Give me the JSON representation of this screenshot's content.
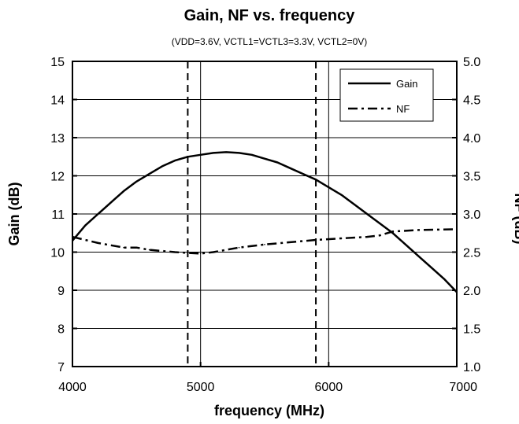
{
  "chart_data": {
    "type": "line",
    "title": "Gain, NF vs. frequency",
    "subtitle": "(VDD=3.6V, VCTL1=VCTL3=3.3V, VCTL2=0V)",
    "xlabel": "frequency (MHz)",
    "ylabel_left": "Gain (dB)",
    "ylabel_right": "NF (dB)",
    "xlim": [
      4000,
      7000
    ],
    "ylim_left": [
      7,
      15
    ],
    "ylim_right": [
      1.0,
      5.0
    ],
    "x_ticks": [
      "4000",
      "5000",
      "6000",
      "7000"
    ],
    "y_ticks_left": [
      "7",
      "8",
      "9",
      "10",
      "11",
      "12",
      "13",
      "14",
      "15"
    ],
    "y_ticks_right": [
      "1.0",
      "1.5",
      "2.0",
      "2.5",
      "3.0",
      "3.5",
      "4.0",
      "4.5",
      "5.0"
    ],
    "grid": true,
    "legend_position": "top-right",
    "vertical_markers": [
      4900,
      5900
    ],
    "series": [
      {
        "name": "Gain",
        "axis": "left",
        "style": "solid",
        "x": [
          4000,
          4100,
          4200,
          4300,
          4400,
          4500,
          4600,
          4700,
          4800,
          4900,
          5000,
          5100,
          5200,
          5300,
          5400,
          5500,
          5600,
          5700,
          5800,
          5900,
          6000,
          6100,
          6200,
          6300,
          6400,
          6500,
          6600,
          6700,
          6800,
          6900,
          7000
        ],
        "values": [
          10.3,
          10.7,
          11.0,
          11.3,
          11.6,
          11.85,
          12.05,
          12.25,
          12.4,
          12.5,
          12.55,
          12.6,
          12.62,
          12.6,
          12.55,
          12.45,
          12.35,
          12.2,
          12.05,
          11.9,
          11.7,
          11.5,
          11.25,
          11.0,
          10.75,
          10.5,
          10.2,
          9.9,
          9.6,
          9.3,
          8.95
        ]
      },
      {
        "name": "NF",
        "axis": "right",
        "style": "dash-dot",
        "x": [
          4000,
          4200,
          4400,
          4500,
          4600,
          4800,
          4900,
          5000,
          5100,
          5300,
          5500,
          5700,
          5900,
          6100,
          6300,
          6400,
          6500,
          6700,
          7000
        ],
        "values": [
          2.7,
          2.62,
          2.56,
          2.56,
          2.53,
          2.5,
          2.49,
          2.48,
          2.5,
          2.56,
          2.6,
          2.63,
          2.66,
          2.68,
          2.7,
          2.72,
          2.77,
          2.79,
          2.8
        ]
      }
    ]
  }
}
